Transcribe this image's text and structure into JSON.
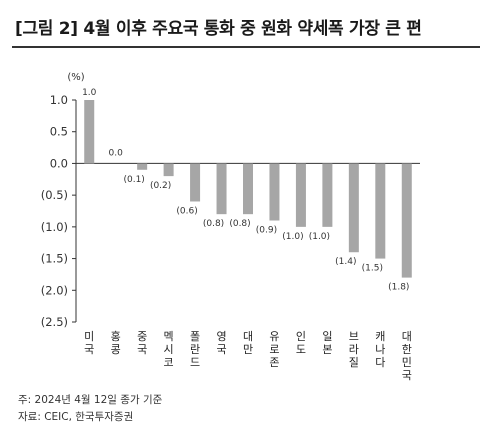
{
  "title": "[그림 2] 4월 이후 주요국 통화 중 원화 약세폭 가장 큰 편",
  "chart_data": {
    "type": "bar",
    "y_unit_label": "(%)",
    "categories": [
      "미국",
      "홍콩",
      "중국",
      "멕시코",
      "폴란드",
      "영국",
      "대만",
      "유로존",
      "인도",
      "일본",
      "브라질",
      "캐나다",
      "대한민국"
    ],
    "values": [
      1.0,
      0.0,
      -0.1,
      -0.2,
      -0.6,
      -0.8,
      -0.8,
      -0.9,
      -1.0,
      -1.0,
      -1.4,
      -1.5,
      -1.8
    ],
    "value_labels": [
      "1.0",
      "0.0",
      "(0.1)",
      "(0.2)",
      "(0.6)",
      "(0.8)",
      "(0.8)",
      "(0.9)",
      "(1.0)",
      "(1.0)",
      "(1.4)",
      "(1.5)",
      "(1.8)"
    ],
    "ylim": [
      -2.5,
      1.0
    ],
    "yticks": [
      1.0,
      0.5,
      0.0,
      -0.5,
      -1.0,
      -1.5,
      -2.0,
      -2.5
    ],
    "ytick_labels": [
      "1.0",
      "0.5",
      "0.0",
      "(0.5)",
      "(1.0)",
      "(1.5)",
      "(2.0)",
      "(2.5)"
    ],
    "bar_color": "#a6a6a6",
    "grid": false,
    "legend": "none"
  },
  "footer": {
    "note": "주: 2024년 4월 12일 종가 기준",
    "source": "자료: CEIC, 한국투자증권"
  }
}
